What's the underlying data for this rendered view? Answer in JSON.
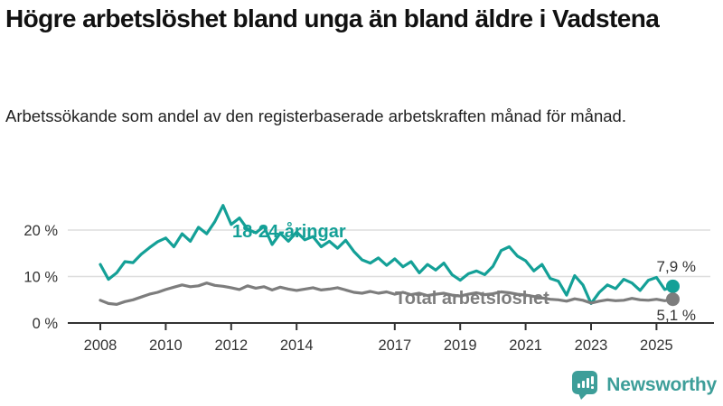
{
  "header": {
    "title": "Högre arbetslöshet bland unga än bland äldre i Vadstena",
    "subtitle": "Arbetssökande som andel av den registerbaserade arbetskraften månad för månad."
  },
  "logo": {
    "brand_name": "Newsworthy",
    "color": "#3d9e99",
    "icon": "newsworthy-bar-chart-bubble-icon"
  },
  "colors": {
    "young_series": "#14a097",
    "total_series": "#7d7d7d",
    "axis": "#333333",
    "grid": "#dddddd",
    "background": "#ffffff"
  },
  "chart_data": {
    "type": "line",
    "title": "Högre arbetslöshet bland unga än bland äldre i Vadstena",
    "subtitle": "Arbetssökande som andel av den registerbaserade arbetskraften månad för månad.",
    "xlabel": "",
    "ylabel": "",
    "ylim": [
      0,
      27
    ],
    "xlim": [
      2007.0,
      2026.2
    ],
    "grid": "horizontal",
    "legend_position": "inline-labels",
    "y_ticks": [
      {
        "value": 0,
        "label": "0 %"
      },
      {
        "value": 10,
        "label": "10 %"
      },
      {
        "value": 20,
        "label": "20 %"
      }
    ],
    "x_ticks": [
      {
        "value": 2008,
        "label": "2008"
      },
      {
        "value": 2010,
        "label": "2010"
      },
      {
        "value": 2012,
        "label": "2012"
      },
      {
        "value": 2014,
        "label": "2014"
      },
      {
        "value": 2017,
        "label": "2017"
      },
      {
        "value": 2019,
        "label": "2019"
      },
      {
        "value": 2021,
        "label": "2021"
      },
      {
        "value": 2023,
        "label": "2023"
      },
      {
        "value": 2025,
        "label": "2025"
      }
    ],
    "x": [
      2008.0,
      2008.25,
      2008.5,
      2008.75,
      2009.0,
      2009.25,
      2009.5,
      2009.75,
      2010.0,
      2010.25,
      2010.5,
      2010.75,
      2011.0,
      2011.25,
      2011.5,
      2011.75,
      2012.0,
      2012.25,
      2012.5,
      2012.75,
      2013.0,
      2013.25,
      2013.5,
      2013.75,
      2014.0,
      2014.25,
      2014.5,
      2014.75,
      2015.0,
      2015.25,
      2015.5,
      2015.75,
      2016.0,
      2016.25,
      2016.5,
      2016.75,
      2017.0,
      2017.25,
      2017.5,
      2017.75,
      2018.0,
      2018.25,
      2018.5,
      2018.75,
      2019.0,
      2019.25,
      2019.5,
      2019.75,
      2020.0,
      2020.25,
      2020.5,
      2020.75,
      2021.0,
      2021.25,
      2021.5,
      2021.75,
      2022.0,
      2022.25,
      2022.5,
      2022.75,
      2023.0,
      2023.25,
      2023.5,
      2023.75,
      2024.0,
      2024.25,
      2024.5,
      2024.75,
      2025.0,
      2025.25,
      2025.5
    ],
    "series": [
      {
        "name": "18-24-åringar",
        "color": "#14a097",
        "end_label": "7,9 %",
        "end_value": 7.9,
        "values": [
          12.6,
          9.4,
          10.8,
          13.2,
          13.0,
          14.8,
          16.2,
          17.5,
          18.3,
          16.4,
          19.2,
          17.6,
          20.6,
          19.2,
          21.8,
          25.3,
          21.2,
          22.6,
          20.2,
          19.4,
          20.8,
          16.9,
          19.3,
          17.6,
          19.6,
          17.9,
          18.6,
          16.4,
          17.6,
          16.1,
          17.8,
          15.4,
          13.6,
          12.9,
          14.0,
          12.4,
          13.8,
          12.1,
          13.2,
          10.8,
          12.6,
          11.4,
          12.9,
          10.4,
          9.2,
          10.6,
          11.2,
          10.4,
          12.2,
          15.6,
          16.4,
          14.4,
          13.4,
          11.2,
          12.6,
          9.6,
          9.0,
          6.0,
          10.2,
          8.2,
          4.2,
          6.6,
          8.2,
          7.4,
          9.4,
          8.6,
          7.0,
          9.2,
          9.8,
          7.2,
          7.9
        ]
      },
      {
        "name": "Total arbetslöshet",
        "color": "#7d7d7d",
        "end_label": "5,1 %",
        "end_value": 5.1,
        "values": [
          4.9,
          4.2,
          4.0,
          4.6,
          5.0,
          5.6,
          6.2,
          6.6,
          7.2,
          7.7,
          8.2,
          7.8,
          8.0,
          8.6,
          8.1,
          7.9,
          7.6,
          7.2,
          8.0,
          7.5,
          7.8,
          7.1,
          7.7,
          7.3,
          7.0,
          7.3,
          7.6,
          7.1,
          7.3,
          7.6,
          7.1,
          6.6,
          6.4,
          6.8,
          6.4,
          6.7,
          6.2,
          6.6,
          6.1,
          6.4,
          5.9,
          6.2,
          6.4,
          6.0,
          5.8,
          6.2,
          6.5,
          6.1,
          6.3,
          6.7,
          6.5,
          6.2,
          6.0,
          5.7,
          5.4,
          5.1,
          5.0,
          4.7,
          5.2,
          4.9,
          4.3,
          4.7,
          5.0,
          4.8,
          4.9,
          5.3,
          5.0,
          4.9,
          5.1,
          4.8,
          5.1
        ]
      }
    ]
  }
}
